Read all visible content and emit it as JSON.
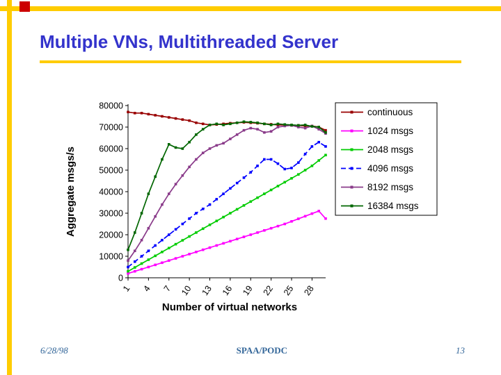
{
  "slide": {
    "title": "Multiple VNs, Multithreaded Server",
    "footer": {
      "date": "6/28/98",
      "center": "SPAA/PODC",
      "page": "13"
    },
    "colors": {
      "title_text": "#3333CC",
      "accent_yellow": "#FFCC00",
      "accent_red": "#CC0000",
      "footer_text": "#336699",
      "axis_text": "#000000"
    }
  },
  "chart_data": {
    "type": "line",
    "title": "",
    "xlabel": "Number of virtual networks",
    "ylabel": "Aggregate msgs/s",
    "xlim": [
      1,
      30
    ],
    "ylim": [
      0,
      80000
    ],
    "x_ticks": [
      1,
      4,
      7,
      10,
      13,
      16,
      19,
      22,
      25,
      28
    ],
    "y_ticks": [
      0,
      10000,
      20000,
      30000,
      40000,
      50000,
      60000,
      70000,
      80000
    ],
    "grid": false,
    "legend_position": "right",
    "x": [
      1,
      2,
      3,
      4,
      5,
      6,
      7,
      8,
      9,
      10,
      11,
      12,
      13,
      14,
      15,
      16,
      17,
      18,
      19,
      20,
      21,
      22,
      23,
      24,
      25,
      26,
      27,
      28,
      29,
      30
    ],
    "series": [
      {
        "name": "continuous",
        "color": "#990000",
        "dash": "solid",
        "values": [
          77000,
          76500,
          76500,
          76000,
          75500,
          75000,
          74500,
          74000,
          73500,
          73000,
          72000,
          71500,
          71000,
          71200,
          71500,
          71800,
          72000,
          72200,
          72000,
          71800,
          71500,
          71300,
          71000,
          71000,
          70800,
          70800,
          70500,
          70500,
          70000,
          68500
        ]
      },
      {
        "name": "1024 msgs",
        "color": "#FF00FF",
        "dash": "solid",
        "values": [
          2000,
          3000,
          4000,
          5000,
          6000,
          7000,
          8000,
          9000,
          10000,
          11000,
          12000,
          13000,
          14000,
          15000,
          16000,
          17000,
          18000,
          19000,
          20000,
          21000,
          22000,
          23000,
          24000,
          25000,
          26200,
          27400,
          28600,
          29800,
          31000,
          27500
        ]
      },
      {
        "name": "2048 msgs",
        "color": "#00CC00",
        "dash": "solid",
        "values": [
          3000,
          4800,
          6600,
          8400,
          10200,
          12000,
          13800,
          15600,
          17400,
          19200,
          21000,
          22800,
          24600,
          26400,
          28200,
          30000,
          31800,
          33600,
          35400,
          37200,
          39000,
          40800,
          42600,
          44400,
          46200,
          48000,
          50000,
          52000,
          54500,
          57000
        ]
      },
      {
        "name": "4096 msgs",
        "color": "#0000FF",
        "dash": "dashed",
        "values": [
          5000,
          7500,
          10000,
          12500,
          15000,
          17500,
          20000,
          22500,
          25000,
          27500,
          30000,
          32000,
          34000,
          36500,
          39000,
          41500,
          44000,
          46500,
          49000,
          52000,
          55000,
          55000,
          53000,
          50500,
          51000,
          53500,
          57500,
          61000,
          63000,
          61000
        ]
      },
      {
        "name": "8192 msgs",
        "color": "#8A3B8A",
        "dash": "solid",
        "values": [
          8000,
          12500,
          17500,
          23000,
          28500,
          34000,
          39000,
          43500,
          47500,
          51500,
          55000,
          58000,
          60000,
          61500,
          62500,
          64500,
          66500,
          68500,
          69500,
          69000,
          67500,
          68000,
          70000,
          70500,
          70800,
          70000,
          69500,
          70500,
          69000,
          67000
        ]
      },
      {
        "name": "16384 msgs",
        "color": "#006600",
        "dash": "solid",
        "values": [
          13000,
          21000,
          30000,
          39000,
          47000,
          55000,
          62000,
          60500,
          60000,
          63000,
          66500,
          69000,
          71000,
          71500,
          71000,
          71500,
          72000,
          72500,
          72300,
          72000,
          71500,
          71000,
          71500,
          71200,
          71000,
          70800,
          71000,
          70300,
          70000,
          67500
        ]
      }
    ]
  }
}
